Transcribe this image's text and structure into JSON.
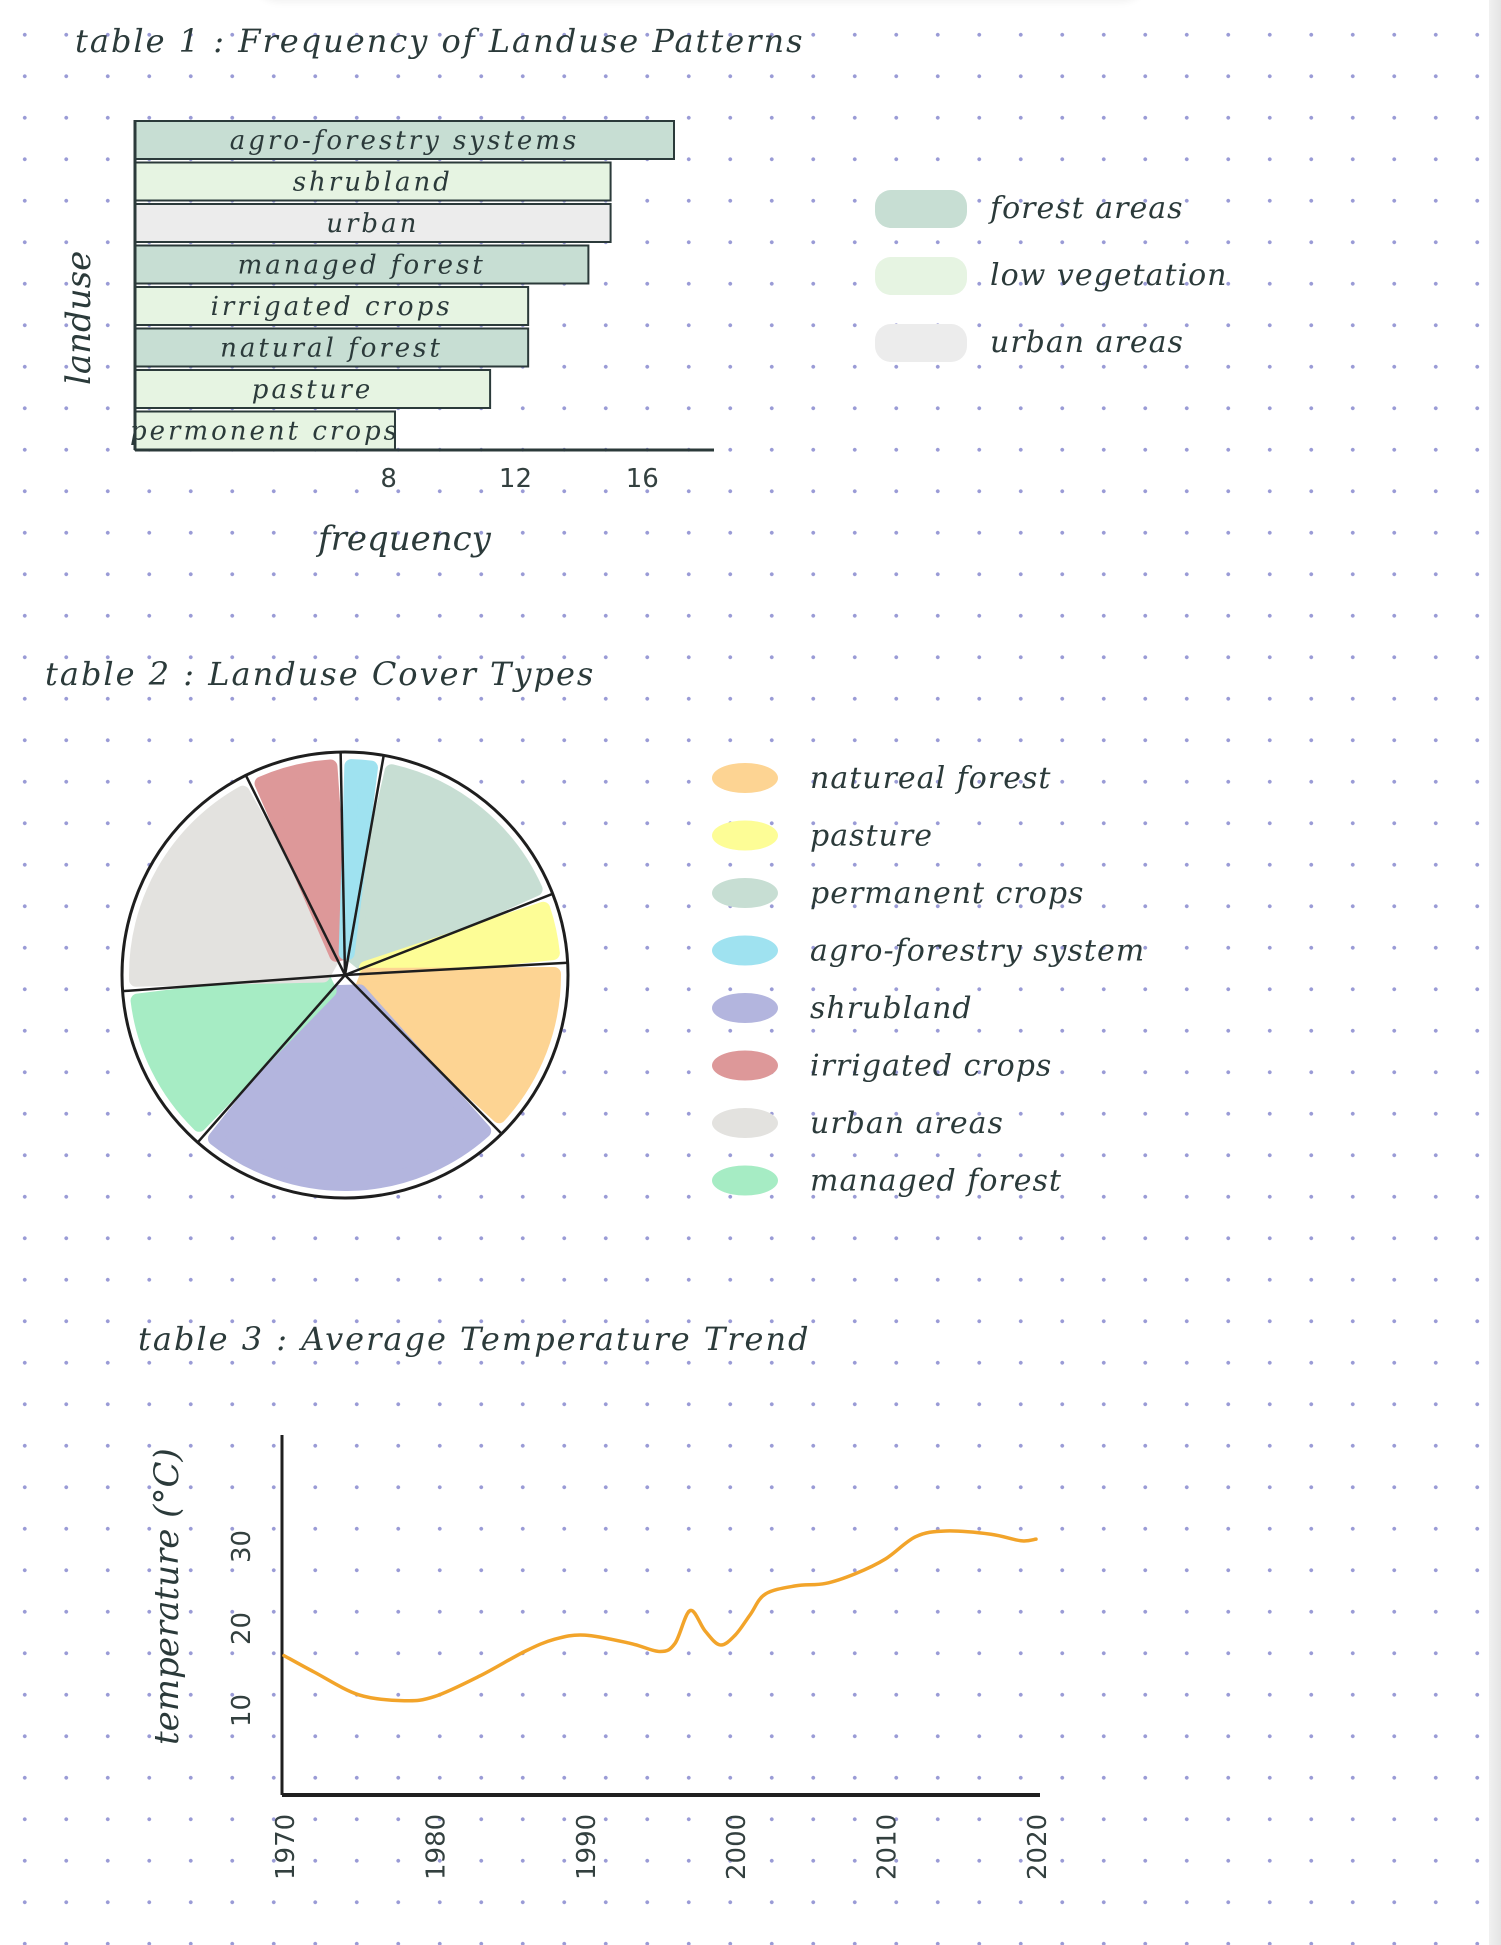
{
  "colors": {
    "forest": "#c7ded3",
    "low_vegetation": "#e6f4e2",
    "urban": "#ececec",
    "ink": "#2b3a3a",
    "line": "#f2a42a"
  },
  "chart_data": [
    {
      "type": "bar",
      "orientation": "horizontal",
      "title": "table 1 : Frequency of Landuse Patterns",
      "xlabel": "frequency",
      "ylabel": "landuse",
      "categories": [
        "agro-forestry systems",
        "shrubland",
        "urban",
        "managed forest",
        "irrigated crops",
        "natural forest",
        "pasture",
        "permonent crops"
      ],
      "values": [
        17,
        15,
        15,
        14.3,
        12.4,
        12.4,
        11.2,
        8.2
      ],
      "groups": [
        "forest areas",
        "low vegetation",
        "urban areas",
        "forest areas",
        "low vegetation",
        "forest areas",
        "low vegetation",
        "low vegetation"
      ],
      "xticks": [
        "8",
        "12",
        "16"
      ],
      "legend": [
        "forest areas",
        "low vegetation",
        "urban areas"
      ],
      "legend_position": "right"
    },
    {
      "type": "pie",
      "title": "table 2 : Landuse Cover Types",
      "slices": [
        {
          "label": "permanent crops",
          "value": 58,
          "color": "#c7ded3"
        },
        {
          "label": "pasture",
          "value": 18,
          "color": "#fdfd96"
        },
        {
          "label": "natural forest",
          "value": 48,
          "color": "#fdd493"
        },
        {
          "label": "shrubland",
          "value": 85,
          "color": "#b3b5de"
        },
        {
          "label": "managed forest",
          "value": 44,
          "color": "#a6ecc4"
        },
        {
          "label": "urban areas",
          "value": 67,
          "color": "#e3e2df"
        },
        {
          "label": "irrigated crops",
          "value": 25,
          "color": "#dd9899"
        },
        {
          "label": "agro-forestry system",
          "value": 11,
          "color": "#9fe2f0"
        }
      ],
      "legend": [
        {
          "label": "natureal forest",
          "color": "#fdd493"
        },
        {
          "label": "pasture",
          "color": "#fdfd96"
        },
        {
          "label": "permanent crops",
          "color": "#c7ded3"
        },
        {
          "label": "agro-forestry system",
          "color": "#9fe2f0"
        },
        {
          "label": "shrubland",
          "color": "#b3b5de"
        },
        {
          "label": "irrigated crops",
          "color": "#dd9899"
        },
        {
          "label": "urban areas",
          "color": "#e3e2df"
        },
        {
          "label": "managed forest",
          "color": "#a6ecc4"
        }
      ],
      "legend_position": "right"
    },
    {
      "type": "line",
      "title": "table 3 : Average Temperature Trend",
      "xlabel": "",
      "ylabel": "temperature (°C)",
      "x": [
        1970,
        1972,
        1975,
        1978,
        1980,
        1983,
        1986,
        1988,
        1990,
        1993,
        1995,
        1996,
        1997,
        1998,
        1999,
        2000,
        2001,
        2002,
        2004,
        2006,
        2008,
        2010,
        2012,
        2014,
        2017,
        2019,
        2020
      ],
      "y": [
        17,
        15,
        12.2,
        11.5,
        12,
        14.5,
        17.5,
        19,
        19.5,
        18.5,
        17.5,
        18.5,
        22.5,
        20,
        18.3,
        19.5,
        22,
        24.5,
        25.5,
        25.8,
        27,
        28.8,
        31.5,
        32.2,
        31.8,
        31,
        31.2
      ],
      "xlim": [
        1970,
        2020
      ],
      "ylim": [
        0,
        40
      ],
      "xticks": [
        "1970",
        "1980",
        "1990",
        "2000",
        "2010",
        "2020"
      ],
      "yticks": [
        "10",
        "20",
        "30"
      ]
    }
  ]
}
